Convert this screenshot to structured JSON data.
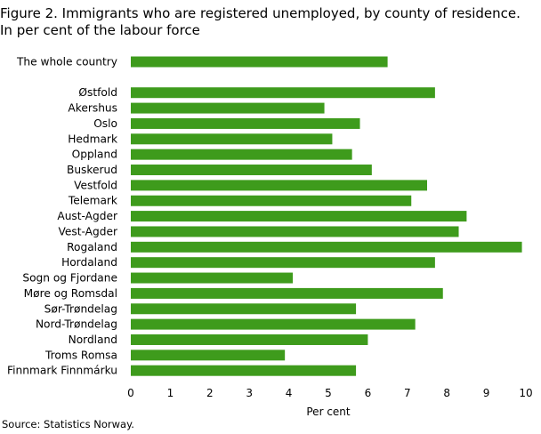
{
  "chart_data": {
    "type": "bar",
    "orientation": "horizontal",
    "title": "Figure 2. Immigrants who are registered unemployed, by county of residence.",
    "subtitle": "In per cent of the labour force",
    "categories": [
      "The whole country",
      "",
      "Østfold",
      "Akershus",
      "Oslo",
      "Hedmark",
      "Oppland",
      "Buskerud",
      "Vestfold",
      "Telemark",
      "Aust-Agder",
      "Vest-Agder",
      "Rogaland",
      "Hordaland",
      "Sogn og Fjordane",
      "Møre og Romsdal",
      "Sør-Trøndelag",
      "Nord-Trøndelag",
      "Nordland",
      "Troms Romsa",
      "Finnmark Finnmárku"
    ],
    "values": [
      6.5,
      null,
      7.7,
      4.9,
      5.8,
      5.1,
      5.6,
      6.1,
      7.5,
      7.1,
      8.5,
      8.3,
      9.9,
      7.7,
      4.1,
      7.9,
      5.7,
      7.2,
      6.0,
      3.9,
      5.7
    ],
    "xlabel": "Per cent",
    "ylabel": "",
    "xlim": [
      0,
      10
    ],
    "xticks": [
      "0",
      "1",
      "2",
      "3",
      "4",
      "5",
      "6",
      "7",
      "8",
      "9",
      "10"
    ],
    "grid": false,
    "legend": "none",
    "bar_color": "#3e9b1c"
  },
  "source": "Source: Statistics Norway."
}
